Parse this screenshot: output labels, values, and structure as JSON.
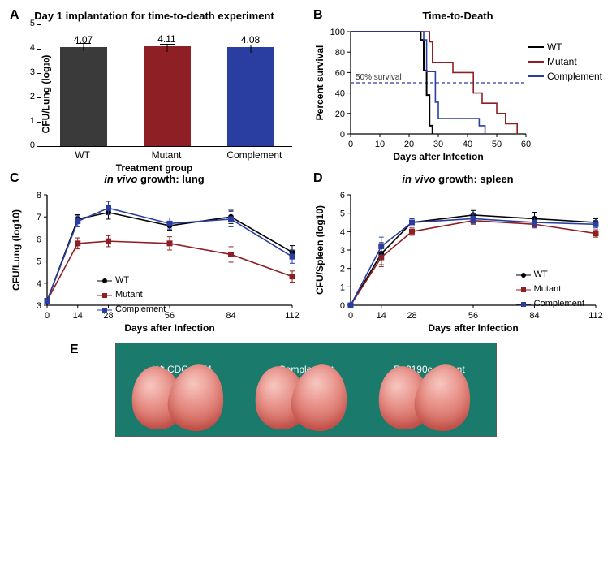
{
  "colors": {
    "wt": "#2a2a2a",
    "mutant": "#8e1f24",
    "complement": "#2a3ea1",
    "axis": "#000000",
    "dash": "#2a3ea1",
    "photo_bg": "#1a7a6c"
  },
  "panelA": {
    "label": "A",
    "title": "Day 1 implantation for time-to-death experiment",
    "ylabel": "CFU/Lung (log₁₀)",
    "xlabel": "Treatment group",
    "ylim": [
      0,
      5
    ],
    "ytick_step": 1,
    "categories": [
      "WT",
      "Mutant",
      "Complement"
    ],
    "values": [
      4.07,
      4.11,
      4.08
    ],
    "err": [
      0.17,
      0.09,
      0.1
    ],
    "bar_colors": [
      "#3a3a3a",
      "#8e1f24",
      "#2a3ea1"
    ],
    "value_labels": [
      "4.07",
      "4.11",
      "4.08"
    ]
  },
  "panelB": {
    "label": "B",
    "title": "Time-to-Death",
    "xlabel": "Days after Infection",
    "ylabel": "Percent survival",
    "ylim": [
      0,
      100
    ],
    "ytick_step": 20,
    "xlim": [
      0,
      60
    ],
    "xtick_step": 10,
    "fifty_line_label": "50% survival",
    "fifty_line_y": 50,
    "series": [
      {
        "name": "WT",
        "color": "#000000",
        "width": 2,
        "points": [
          [
            0,
            100
          ],
          [
            24,
            100
          ],
          [
            24,
            92
          ],
          [
            25,
            92
          ],
          [
            25,
            62
          ],
          [
            26,
            62
          ],
          [
            26,
            38
          ],
          [
            27,
            38
          ],
          [
            27,
            8
          ],
          [
            28,
            8
          ],
          [
            28,
            0
          ]
        ]
      },
      {
        "name": "Mutant",
        "color": "#8e1f24",
        "width": 1.6,
        "points": [
          [
            0,
            100
          ],
          [
            27,
            100
          ],
          [
            27,
            90
          ],
          [
            28,
            90
          ],
          [
            28,
            70
          ],
          [
            35,
            70
          ],
          [
            35,
            60
          ],
          [
            40,
            60
          ],
          [
            42,
            60
          ],
          [
            42,
            40
          ],
          [
            45,
            40
          ],
          [
            45,
            30
          ],
          [
            50,
            30
          ],
          [
            50,
            20
          ],
          [
            53,
            20
          ],
          [
            53,
            10
          ],
          [
            57,
            10
          ],
          [
            57,
            0
          ]
        ]
      },
      {
        "name": "Complement",
        "color": "#2a3ea1",
        "width": 1.6,
        "points": [
          [
            0,
            100
          ],
          [
            25,
            100
          ],
          [
            25,
            92
          ],
          [
            26,
            92
          ],
          [
            26,
            61
          ],
          [
            29,
            61
          ],
          [
            29,
            31
          ],
          [
            30,
            31
          ],
          [
            30,
            15
          ],
          [
            44,
            15
          ],
          [
            44,
            8
          ],
          [
            46,
            8
          ],
          [
            46,
            0
          ]
        ]
      }
    ]
  },
  "panelC": {
    "label": "C",
    "title": "in vivo growth: lung",
    "xlabel": "Days after Infection",
    "ylabel": "CFU/Lung (log₁₀)",
    "ylim": [
      3,
      8
    ],
    "yticks": [
      3,
      4,
      5,
      6,
      7,
      8
    ],
    "xlim": [
      0,
      112
    ],
    "xticks": [
      0,
      14,
      28,
      56,
      84,
      112
    ],
    "series": [
      {
        "name": "WT",
        "color": "#000000",
        "marker": "circle",
        "points": [
          [
            0,
            3.2
          ],
          [
            14,
            6.9
          ],
          [
            28,
            7.2
          ],
          [
            56,
            6.6
          ],
          [
            84,
            7.0
          ],
          [
            112,
            5.4
          ]
        ],
        "err": [
          0,
          0.2,
          0.3,
          0.2,
          0.3,
          0.3
        ]
      },
      {
        "name": "Mutant",
        "color": "#8e1f24",
        "marker": "square",
        "points": [
          [
            0,
            3.2
          ],
          [
            14,
            5.8
          ],
          [
            28,
            5.9
          ],
          [
            56,
            5.8
          ],
          [
            84,
            5.3
          ],
          [
            112,
            4.3
          ]
        ],
        "err": [
          0,
          0.25,
          0.25,
          0.3,
          0.35,
          0.25
        ]
      },
      {
        "name": "Complement",
        "color": "#2a3ea1",
        "marker": "square",
        "points": [
          [
            0,
            3.2
          ],
          [
            14,
            6.8
          ],
          [
            28,
            7.4
          ],
          [
            56,
            6.7
          ],
          [
            84,
            6.9
          ],
          [
            112,
            5.2
          ]
        ],
        "err": [
          0,
          0.25,
          0.3,
          0.25,
          0.35,
          0.3
        ]
      }
    ]
  },
  "panelD": {
    "label": "D",
    "title": "in vivo growth: spleen",
    "xlabel": "Days after Infection",
    "ylabel": "CFU/Spleen (log₁₀)",
    "ylim": [
      0,
      6
    ],
    "yticks": [
      0,
      1,
      2,
      3,
      4,
      5,
      6
    ],
    "xlim": [
      0,
      112
    ],
    "xticks": [
      0,
      14,
      28,
      56,
      84,
      112
    ],
    "series": [
      {
        "name": "WT",
        "color": "#000000",
        "marker": "circle",
        "points": [
          [
            0,
            0
          ],
          [
            14,
            2.8
          ],
          [
            28,
            4.5
          ],
          [
            56,
            4.9
          ],
          [
            84,
            4.7
          ],
          [
            112,
            4.5
          ]
        ],
        "err": [
          0,
          0.6,
          0.2,
          0.25,
          0.35,
          0.2
        ]
      },
      {
        "name": "Mutant",
        "color": "#8e1f24",
        "marker": "square",
        "points": [
          [
            0,
            0
          ],
          [
            14,
            2.6
          ],
          [
            28,
            4.0
          ],
          [
            56,
            4.6
          ],
          [
            84,
            4.4
          ],
          [
            112,
            3.9
          ]
        ],
        "err": [
          0,
          0.5,
          0.2,
          0.2,
          0.2,
          0.2
        ]
      },
      {
        "name": "Complement",
        "color": "#2a3ea1",
        "marker": "square",
        "points": [
          [
            0,
            0
          ],
          [
            14,
            3.2
          ],
          [
            28,
            4.5
          ],
          [
            56,
            4.7
          ],
          [
            84,
            4.5
          ],
          [
            112,
            4.4
          ]
        ],
        "err": [
          0,
          0.5,
          0.2,
          0.25,
          0.25,
          0.2
        ]
      }
    ]
  },
  "panelE": {
    "label": "E",
    "photos": [
      {
        "label": "Wt CDC 1551"
      },
      {
        "label": "Complement"
      },
      {
        "label": "Rv2190c mutant"
      }
    ]
  }
}
